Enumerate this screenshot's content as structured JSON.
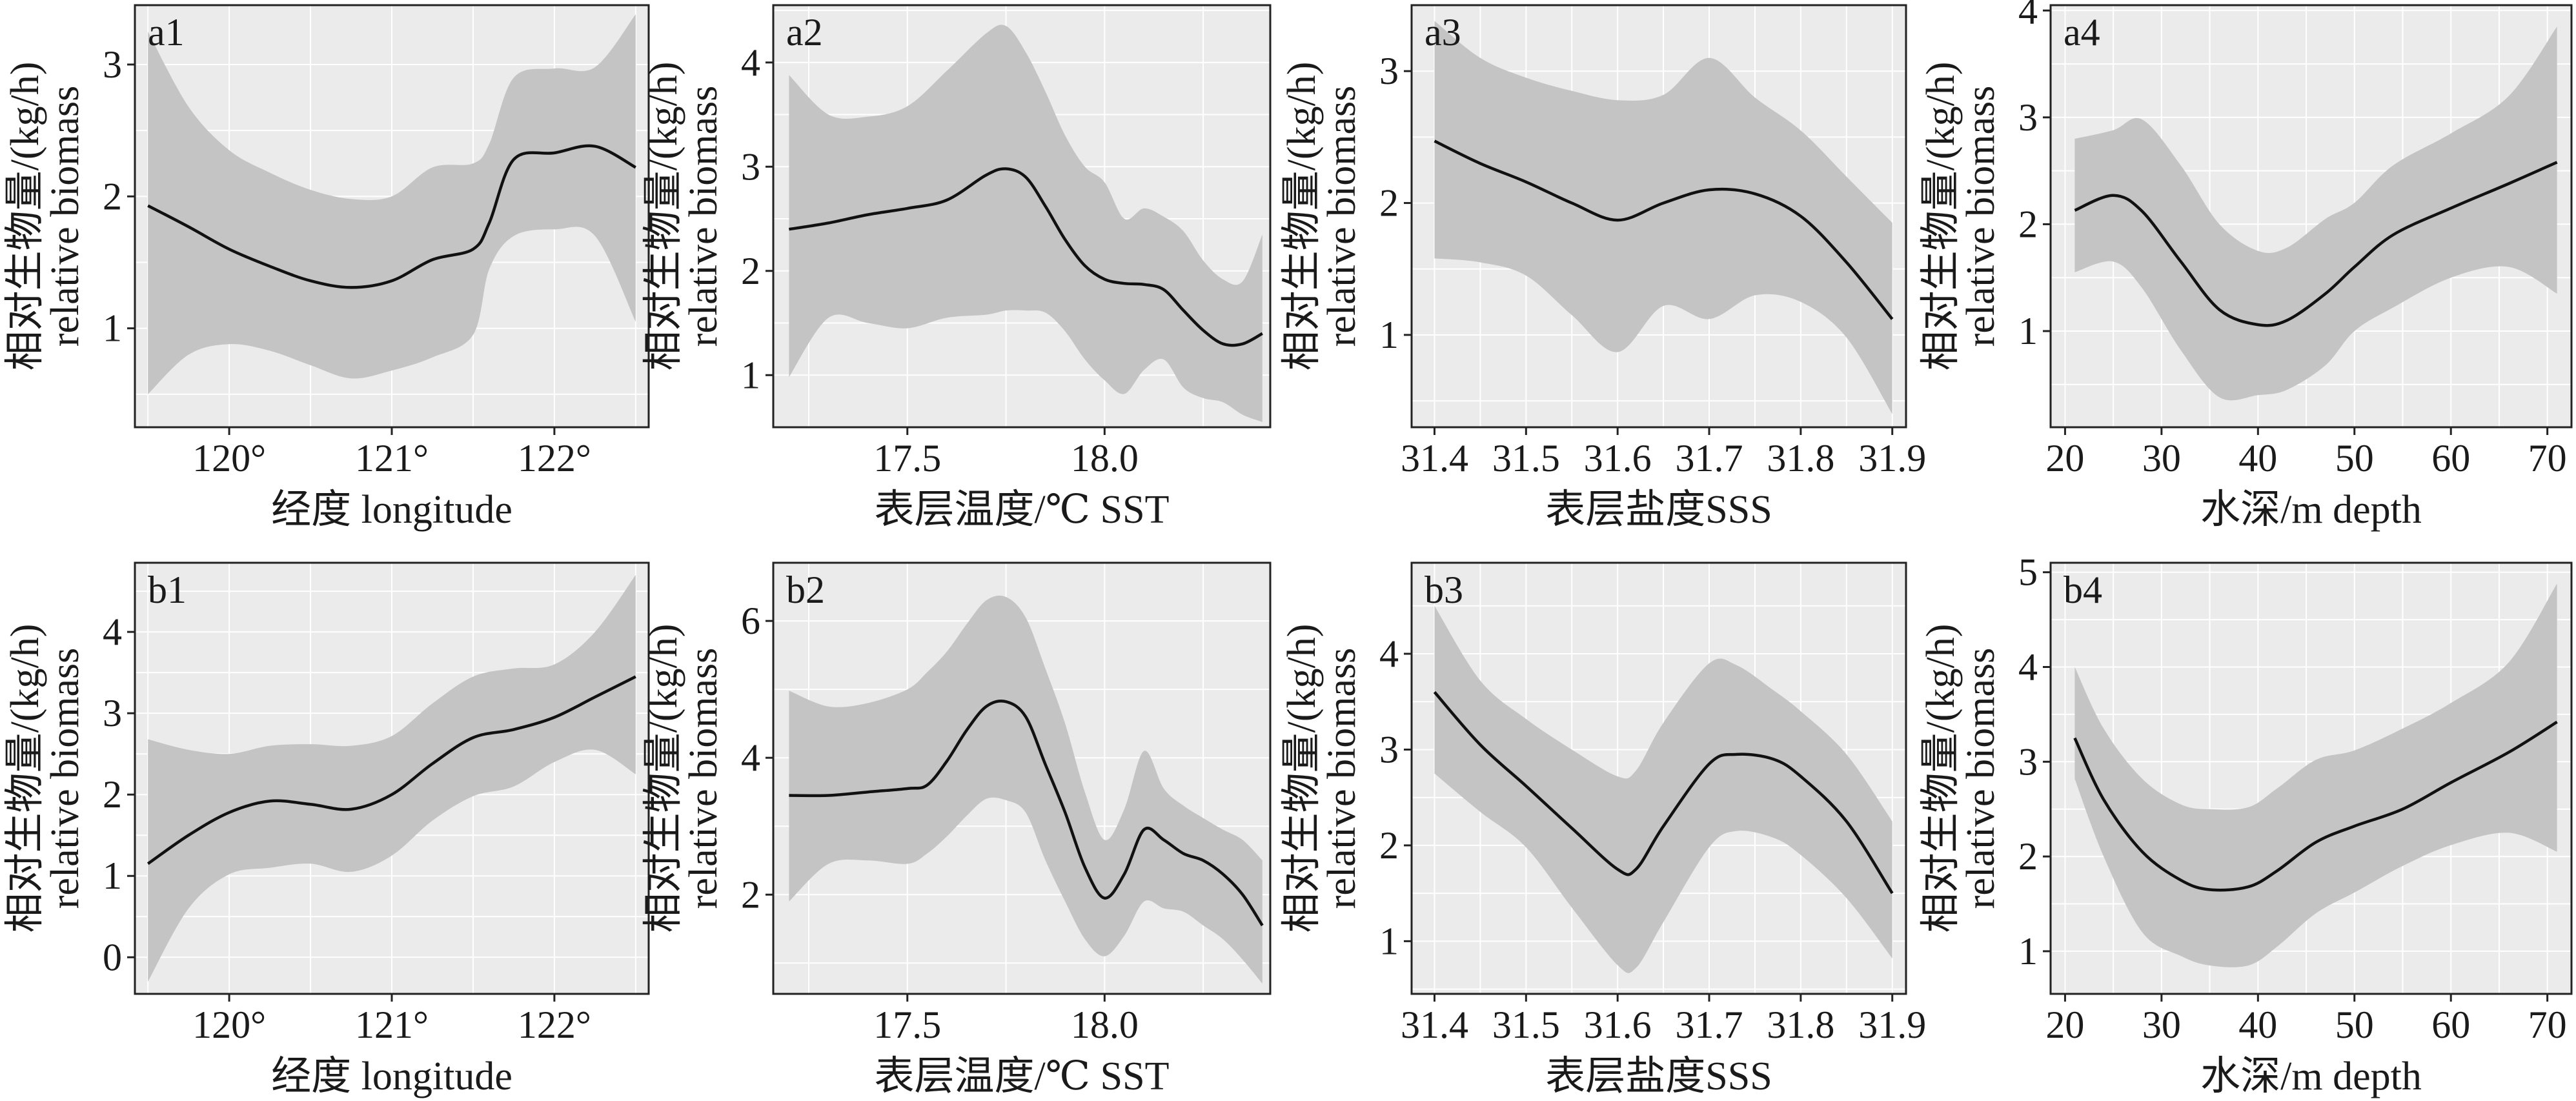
{
  "ylabel_cn": "相对生物量/(kg/h)",
  "ylabel_en": "relative biomass",
  "chart_data": [
    {
      "id": "a1",
      "type": "line",
      "xlabel": "经度 longitude",
      "xlim": [
        119.42,
        122.58
      ],
      "ylim": [
        0.25,
        3.45
      ],
      "xticks": [
        120,
        121,
        122
      ],
      "xticklabels": [
        "120°",
        "121°",
        "122°"
      ],
      "yticks": [
        1,
        2,
        3
      ],
      "yticklabels": [
        "1",
        "2",
        "3"
      ],
      "x": [
        119.5,
        119.75,
        120.0,
        120.25,
        120.5,
        120.75,
        121.0,
        121.25,
        121.5,
        121.6,
        121.75,
        122.0,
        122.25,
        122.5
      ],
      "y": [
        1.93,
        1.77,
        1.6,
        1.47,
        1.36,
        1.31,
        1.36,
        1.52,
        1.6,
        1.8,
        2.28,
        2.33,
        2.38,
        2.22
      ],
      "lower": [
        0.5,
        0.8,
        0.88,
        0.83,
        0.72,
        0.62,
        0.68,
        0.78,
        0.95,
        1.45,
        1.7,
        1.75,
        1.7,
        1.05
      ],
      "upper": [
        3.25,
        2.68,
        2.35,
        2.18,
        2.05,
        1.98,
        2.0,
        2.22,
        2.25,
        2.4,
        2.9,
        2.97,
        2.98,
        3.38
      ]
    },
    {
      "id": "a2",
      "type": "line",
      "xlabel": "表层温度/℃ SST",
      "xlim": [
        17.16,
        18.42
      ],
      "ylim": [
        0.5,
        4.55
      ],
      "xticks": [
        17.5,
        18.0
      ],
      "xticklabels": [
        "17.5",
        "18.0"
      ],
      "yticks": [
        1,
        2,
        3,
        4
      ],
      "yticklabels": [
        "1",
        "2",
        "3",
        "4"
      ],
      "x": [
        17.2,
        17.3,
        17.4,
        17.5,
        17.6,
        17.7,
        17.75,
        17.8,
        17.85,
        17.9,
        17.95,
        18.0,
        18.05,
        18.1,
        18.15,
        18.2,
        18.25,
        18.3,
        18.35,
        18.4
      ],
      "y": [
        2.4,
        2.46,
        2.54,
        2.6,
        2.68,
        2.92,
        2.98,
        2.9,
        2.62,
        2.3,
        2.05,
        1.92,
        1.88,
        1.87,
        1.82,
        1.62,
        1.43,
        1.3,
        1.3,
        1.4
      ],
      "lower": [
        0.98,
        1.55,
        1.5,
        1.45,
        1.55,
        1.58,
        1.62,
        1.62,
        1.6,
        1.42,
        1.15,
        0.95,
        0.82,
        1.05,
        1.15,
        0.88,
        0.78,
        0.74,
        0.62,
        0.55
      ],
      "upper": [
        3.88,
        3.5,
        3.48,
        3.58,
        3.92,
        4.28,
        4.35,
        4.1,
        3.72,
        3.3,
        3.0,
        2.85,
        2.5,
        2.6,
        2.52,
        2.38,
        2.1,
        1.92,
        1.9,
        2.35
      ]
    },
    {
      "id": "a3",
      "type": "line",
      "xlabel": "表层盐度SSS",
      "xlim": [
        31.375,
        31.915
      ],
      "ylim": [
        0.3,
        3.5
      ],
      "xticks": [
        31.4,
        31.5,
        31.6,
        31.7,
        31.8,
        31.9
      ],
      "xticklabels": [
        "31.4",
        "31.5",
        "31.6",
        "31.7",
        "31.8",
        "31.9"
      ],
      "yticks": [
        1,
        2,
        3
      ],
      "yticklabels": [
        "1",
        "2",
        "3"
      ],
      "x": [
        31.4,
        31.45,
        31.5,
        31.55,
        31.6,
        31.65,
        31.7,
        31.75,
        31.8,
        31.85,
        31.9
      ],
      "y": [
        2.47,
        2.3,
        2.16,
        2.0,
        1.87,
        2.0,
        2.1,
        2.07,
        1.9,
        1.55,
        1.12
      ],
      "lower": [
        1.58,
        1.55,
        1.45,
        1.15,
        0.87,
        1.22,
        1.12,
        1.3,
        1.25,
        0.98,
        0.4
      ],
      "upper": [
        3.38,
        3.1,
        2.95,
        2.85,
        2.78,
        2.82,
        3.1,
        2.8,
        2.55,
        2.2,
        1.85
      ]
    },
    {
      "id": "a4",
      "type": "line",
      "xlabel": "水深/m depth",
      "xlim": [
        18.5,
        72.5
      ],
      "ylim": [
        0.1,
        4.05
      ],
      "xticks": [
        20,
        30,
        40,
        50,
        60,
        70
      ],
      "xticklabels": [
        "20",
        "30",
        "40",
        "50",
        "60",
        "70"
      ],
      "yticks": [
        1,
        2,
        3,
        4
      ],
      "yticklabels": [
        "1",
        "2",
        "3",
        "4"
      ],
      "x": [
        21,
        25,
        28,
        32,
        36,
        40,
        43,
        47,
        50,
        54,
        60,
        66,
        71
      ],
      "y": [
        2.13,
        2.27,
        2.12,
        1.65,
        1.2,
        1.06,
        1.1,
        1.35,
        1.6,
        1.9,
        2.15,
        2.38,
        2.58
      ],
      "lower": [
        1.55,
        1.65,
        1.4,
        0.82,
        0.38,
        0.4,
        0.45,
        0.68,
        1.0,
        1.22,
        1.5,
        1.6,
        1.35
      ],
      "upper": [
        2.8,
        2.88,
        2.98,
        2.55,
        2.0,
        1.75,
        1.78,
        2.05,
        2.2,
        2.55,
        2.85,
        3.2,
        3.85
      ]
    },
    {
      "id": "b1",
      "type": "line",
      "xlabel": "经度 longitude",
      "xlim": [
        119.42,
        122.58
      ],
      "ylim": [
        -0.45,
        4.85
      ],
      "xticks": [
        120,
        121,
        122
      ],
      "xticklabels": [
        "120°",
        "121°",
        "122°"
      ],
      "yticks": [
        0,
        1,
        2,
        3,
        4
      ],
      "yticklabels": [
        "0",
        "1",
        "2",
        "3",
        "4"
      ],
      "x": [
        119.5,
        119.75,
        120.0,
        120.25,
        120.5,
        120.75,
        121.0,
        121.25,
        121.5,
        121.75,
        122.0,
        122.25,
        122.5
      ],
      "y": [
        1.15,
        1.5,
        1.78,
        1.92,
        1.88,
        1.82,
        2.0,
        2.38,
        2.7,
        2.8,
        2.95,
        3.2,
        3.45
      ],
      "lower": [
        -0.3,
        0.6,
        1.02,
        1.1,
        1.15,
        1.05,
        1.25,
        1.68,
        1.98,
        2.1,
        2.4,
        2.55,
        2.25
      ],
      "upper": [
        2.68,
        2.55,
        2.5,
        2.6,
        2.62,
        2.6,
        2.72,
        3.12,
        3.45,
        3.55,
        3.6,
        4.0,
        4.7
      ]
    },
    {
      "id": "b2",
      "type": "line",
      "xlabel": "表层温度/℃ SST",
      "xlim": [
        17.16,
        18.42
      ],
      "ylim": [
        0.55,
        6.85
      ],
      "xticks": [
        17.5,
        18.0
      ],
      "xticklabels": [
        "17.5",
        "18.0"
      ],
      "yticks": [
        2,
        4,
        6
      ],
      "yticklabels": [
        "2",
        "4",
        "6"
      ],
      "x": [
        17.2,
        17.3,
        17.4,
        17.5,
        17.55,
        17.6,
        17.65,
        17.7,
        17.75,
        17.8,
        17.85,
        17.9,
        17.95,
        18.0,
        18.05,
        18.1,
        18.15,
        18.2,
        18.25,
        18.3,
        18.35,
        18.4
      ],
      "y": [
        3.45,
        3.45,
        3.5,
        3.55,
        3.6,
        3.95,
        4.4,
        4.75,
        4.82,
        4.6,
        3.9,
        3.2,
        2.4,
        1.95,
        2.3,
        2.95,
        2.8,
        2.6,
        2.5,
        2.3,
        2.0,
        1.55
      ],
      "lower": [
        1.9,
        2.45,
        2.5,
        2.45,
        2.6,
        2.85,
        3.15,
        3.4,
        3.38,
        3.2,
        2.5,
        1.9,
        1.35,
        1.1,
        1.4,
        1.9,
        1.8,
        1.75,
        1.55,
        1.35,
        1.05,
        0.7
      ],
      "upper": [
        4.98,
        4.75,
        4.8,
        5.0,
        5.25,
        5.55,
        5.95,
        6.3,
        6.35,
        6.05,
        5.3,
        4.5,
        3.5,
        2.8,
        3.25,
        4.1,
        3.55,
        3.3,
        3.12,
        2.95,
        2.8,
        2.5
      ]
    },
    {
      "id": "b3",
      "type": "line",
      "xlabel": "表层盐度SSS",
      "xlim": [
        31.375,
        31.915
      ],
      "ylim": [
        0.45,
        4.95
      ],
      "xticks": [
        31.4,
        31.5,
        31.6,
        31.7,
        31.8,
        31.9
      ],
      "xticklabels": [
        "31.4",
        "31.5",
        "31.6",
        "31.7",
        "31.8",
        "31.9"
      ],
      "yticks": [
        1,
        2,
        3,
        4
      ],
      "yticklabels": [
        "1",
        "2",
        "3",
        "4"
      ],
      "x": [
        31.4,
        31.45,
        31.5,
        31.55,
        31.6,
        31.62,
        31.65,
        31.7,
        31.73,
        31.77,
        31.8,
        31.85,
        31.9
      ],
      "y": [
        3.6,
        3.05,
        2.62,
        2.18,
        1.75,
        1.75,
        2.2,
        2.85,
        2.95,
        2.9,
        2.72,
        2.25,
        1.5
      ],
      "lower": [
        2.75,
        2.35,
        1.98,
        1.35,
        0.75,
        0.72,
        1.2,
        1.98,
        2.15,
        2.08,
        1.9,
        1.45,
        0.82
      ],
      "upper": [
        4.5,
        3.72,
        3.32,
        3.0,
        2.72,
        2.78,
        3.28,
        3.9,
        3.88,
        3.62,
        3.4,
        2.95,
        2.25
      ]
    },
    {
      "id": "b4",
      "type": "line",
      "xlabel": "水深/m depth",
      "xlim": [
        18.5,
        72.5
      ],
      "ylim": [
        0.55,
        5.1
      ],
      "xticks": [
        20,
        30,
        40,
        50,
        60,
        70
      ],
      "xticklabels": [
        "20",
        "30",
        "40",
        "50",
        "60",
        "70"
      ],
      "yticks": [
        1,
        2,
        3,
        4,
        5
      ],
      "yticklabels": [
        "1",
        "2",
        "3",
        "4",
        "5"
      ],
      "x": [
        21,
        24,
        28,
        32,
        35,
        39,
        42,
        46,
        50,
        55,
        60,
        66,
        71
      ],
      "y": [
        3.25,
        2.6,
        2.05,
        1.75,
        1.65,
        1.68,
        1.85,
        2.15,
        2.32,
        2.5,
        2.78,
        3.1,
        3.42
      ],
      "lower": [
        2.82,
        2.0,
        1.2,
        0.95,
        0.85,
        0.85,
        1.05,
        1.4,
        1.62,
        1.9,
        2.12,
        2.25,
        2.05
      ],
      "upper": [
        4.0,
        3.35,
        2.82,
        2.55,
        2.5,
        2.52,
        2.72,
        3.02,
        3.12,
        3.35,
        3.62,
        4.05,
        4.88
      ]
    }
  ]
}
